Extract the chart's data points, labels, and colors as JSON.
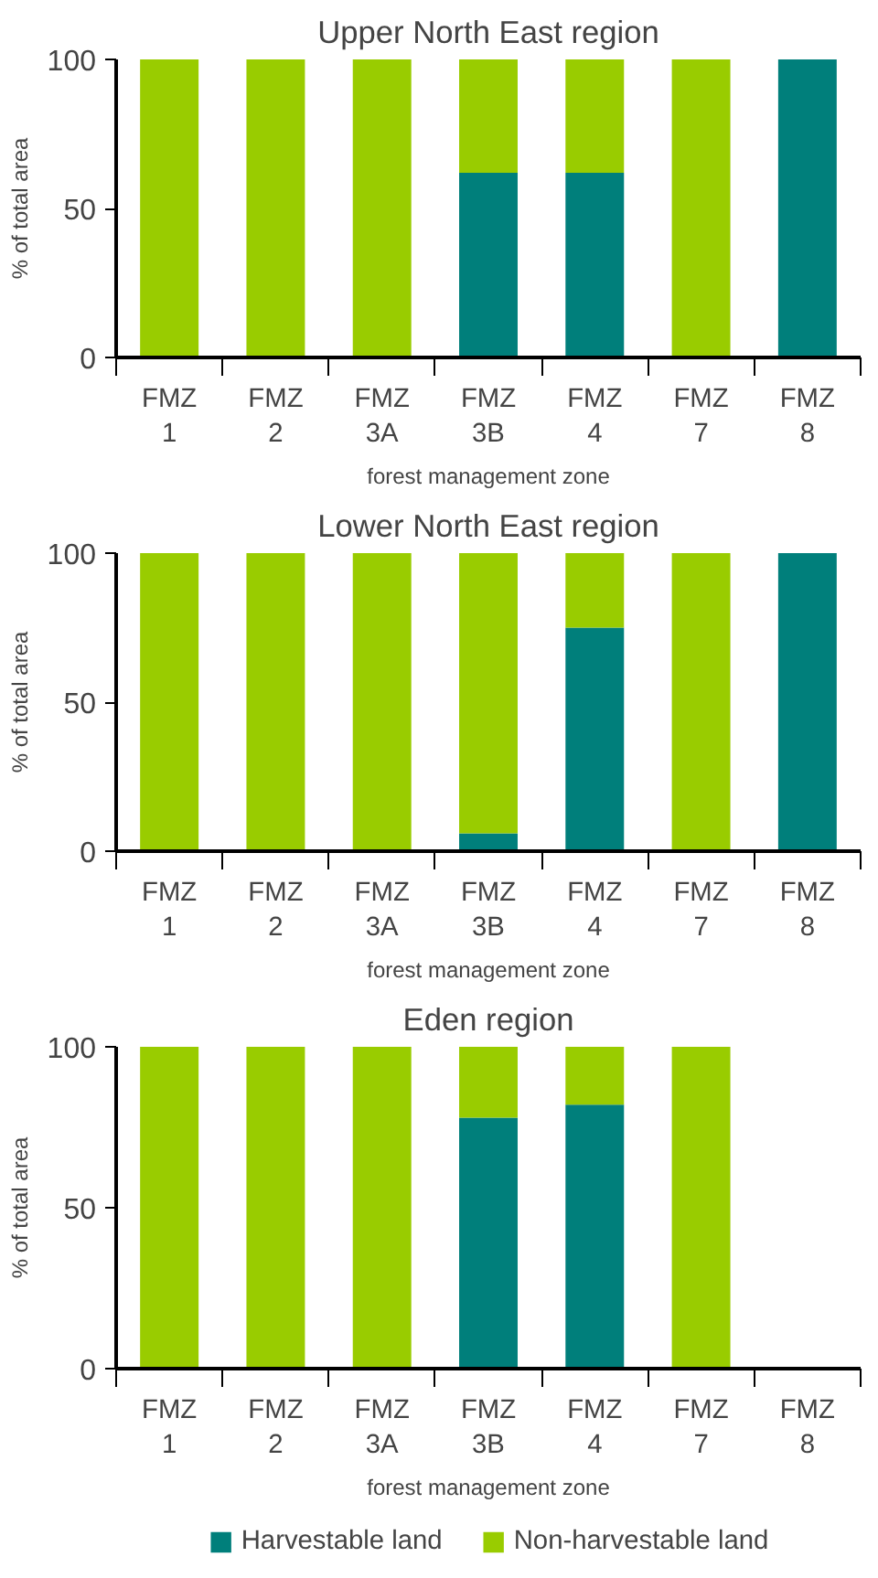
{
  "chart_data": [
    {
      "type": "bar",
      "title": "Upper North East region",
      "xlabel": "forest management zone",
      "ylabel": "% of total area",
      "stacked": true,
      "categories": [
        "FMZ 1",
        "FMZ 2",
        "FMZ 3A",
        "FMZ 3B",
        "FMZ 4",
        "FMZ 7",
        "FMZ 8"
      ],
      "series": [
        {
          "color": "#007f7b",
          "values": [
            0,
            0,
            0,
            62,
            62,
            0,
            100
          ]
        },
        {
          "color": "#99cc00",
          "values": [
            100,
            100,
            100,
            38,
            38,
            100,
            0
          ]
        }
      ],
      "ylim": [
        0,
        100
      ],
      "yticks": [
        0,
        50,
        100
      ],
      "grid": false,
      "legend": false
    },
    {
      "type": "bar",
      "title": "Lower North East region",
      "xlabel": "forest management zone",
      "ylabel": "% of total area",
      "stacked": true,
      "categories": [
        "FMZ 1",
        "FMZ 2",
        "FMZ 3A",
        "FMZ 3B",
        "FMZ 4",
        "FMZ 7",
        "FMZ 8"
      ],
      "series": [
        {
          "color": "#007f7b",
          "values": [
            0,
            0,
            0,
            6,
            75,
            0,
            100
          ]
        },
        {
          "color": "#99cc00",
          "values": [
            100,
            100,
            100,
            94,
            25,
            100,
            0
          ]
        }
      ],
      "ylim": [
        0,
        100
      ],
      "yticks": [
        0,
        50,
        100
      ],
      "grid": false,
      "legend": false
    },
    {
      "type": "bar",
      "title": "Eden region",
      "xlabel": "forest management zone",
      "ylabel": "% of total area",
      "stacked": true,
      "categories": [
        "FMZ 1",
        "FMZ 2",
        "FMZ 3A",
        "FMZ 3B",
        "FMZ 4",
        "FMZ 7",
        "FMZ 8"
      ],
      "series": [
        {
          "name": "Harvestable land",
          "color": "#007f7b",
          "values": [
            0,
            0,
            0,
            78,
            82,
            0,
            null
          ]
        },
        {
          "name": "Non-harvestable land",
          "color": "#99cc00",
          "values": [
            100,
            100,
            100,
            22,
            18,
            100,
            null
          ]
        }
      ],
      "ylim": [
        0,
        100
      ],
      "yticks": [
        0,
        50,
        100
      ],
      "grid": false,
      "legend": "bottom"
    }
  ]
}
